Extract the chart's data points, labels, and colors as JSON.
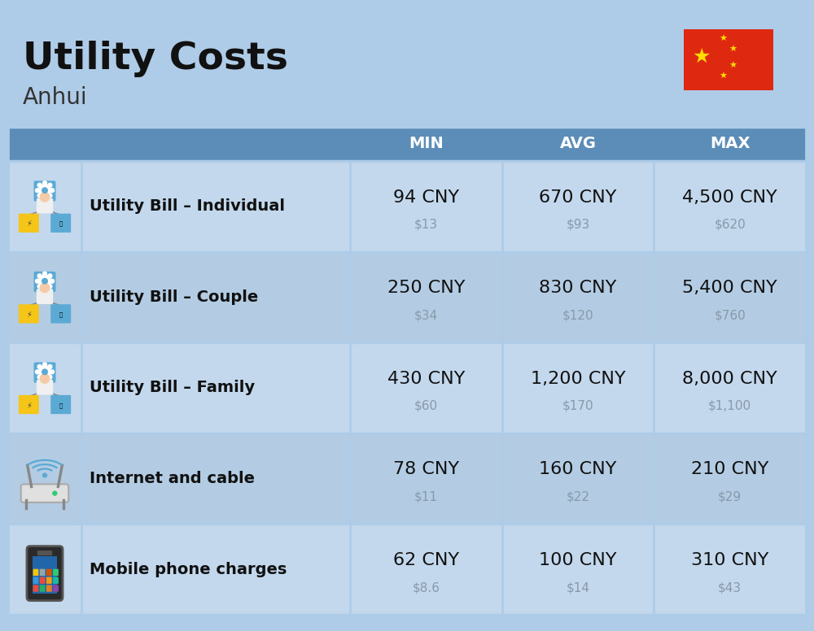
{
  "title": "Utility Costs",
  "subtitle": "Anhui",
  "background_color": "#aecce8",
  "header_color": "#5b8db8",
  "header_text_color": "#ffffff",
  "row_colors": [
    "#c3d8ed",
    "#b3cce3",
    "#c3d8ed",
    "#b3cce3",
    "#c3d8ed"
  ],
  "col_headers": [
    "MIN",
    "AVG",
    "MAX"
  ],
  "rows": [
    {
      "label": "Utility Bill – Individual",
      "min_cny": "94 CNY",
      "min_usd": "$13",
      "avg_cny": "670 CNY",
      "avg_usd": "$93",
      "max_cny": "4,500 CNY",
      "max_usd": "$620",
      "icon": "utility"
    },
    {
      "label": "Utility Bill – Couple",
      "min_cny": "250 CNY",
      "min_usd": "$34",
      "avg_cny": "830 CNY",
      "avg_usd": "$120",
      "max_cny": "5,400 CNY",
      "max_usd": "$760",
      "icon": "utility"
    },
    {
      "label": "Utility Bill – Family",
      "min_cny": "430 CNY",
      "min_usd": "$60",
      "avg_cny": "1,200 CNY",
      "avg_usd": "$170",
      "max_cny": "8,000 CNY",
      "max_usd": "$1,100",
      "icon": "utility"
    },
    {
      "label": "Internet and cable",
      "min_cny": "78 CNY",
      "min_usd": "$11",
      "avg_cny": "160 CNY",
      "avg_usd": "$22",
      "max_cny": "210 CNY",
      "max_usd": "$29",
      "icon": "internet"
    },
    {
      "label": "Mobile phone charges",
      "min_cny": "62 CNY",
      "min_usd": "$8.6",
      "avg_cny": "100 CNY",
      "avg_usd": "$14",
      "max_cny": "310 CNY",
      "max_usd": "$43",
      "icon": "mobile"
    }
  ],
  "title_fontsize": 34,
  "subtitle_fontsize": 20,
  "header_fontsize": 14,
  "label_fontsize": 14,
  "value_fontsize": 16,
  "usd_fontsize": 11,
  "usd_color": "#8899aa",
  "flag_red": "#DE2910",
  "flag_yellow": "#FFDE00"
}
